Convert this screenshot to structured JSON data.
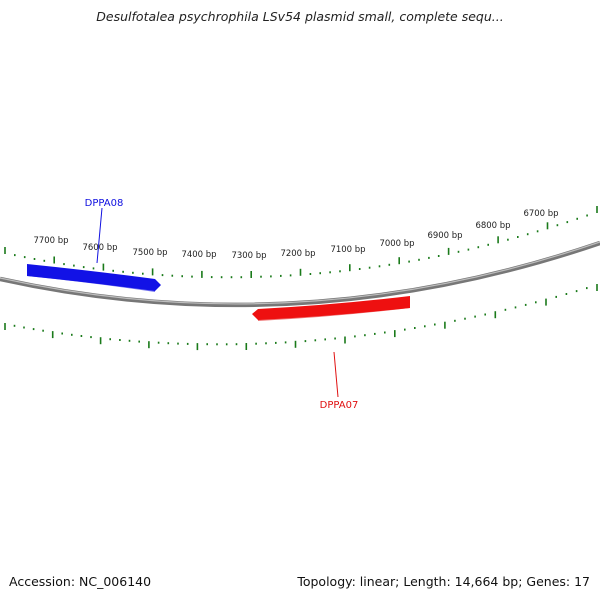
{
  "title": "Desulfotalea psychrophila LSv54 plasmid small, complete sequ...",
  "footer": {
    "accession": "Accession: NC_006140",
    "summary": "Topology: linear; Length: 14,664 bp; Genes: 17"
  },
  "ruler": {
    "labels": [
      "7700 bp",
      "7600 bp",
      "7500 bp",
      "7400 bp",
      "7300 bp",
      "7200 bp",
      "7100 bp",
      "7000 bp",
      "6900 bp",
      "6800 bp",
      "6700 bp"
    ],
    "tick_color": "#1a7a1a"
  },
  "genes": [
    {
      "name": "DPPA08",
      "color": "#1010e0",
      "strand": "forward"
    },
    {
      "name": "DPPA07",
      "color": "#e01010",
      "strand": "reverse"
    }
  ],
  "colors": {
    "backbone": "#888888",
    "forward_gene": "#1010e0",
    "reverse_gene": "#e01010",
    "ticks": "#1a7a1a"
  }
}
